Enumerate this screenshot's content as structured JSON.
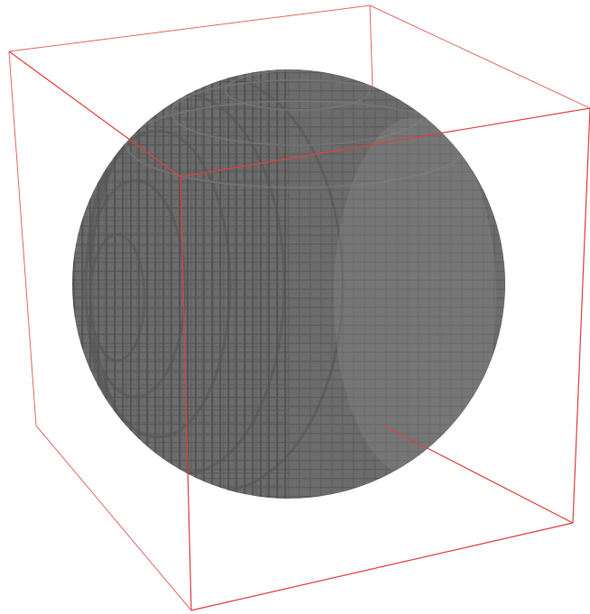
{
  "viewer": {
    "background_color": "#ffffff",
    "object": {
      "shape": "voxelized-sphere",
      "color": "#6c6c6c",
      "shadow_color": "#4f4f4f",
      "highlight_color": "#8a8a8a"
    },
    "bounding_box": {
      "color": "#e04040"
    }
  }
}
